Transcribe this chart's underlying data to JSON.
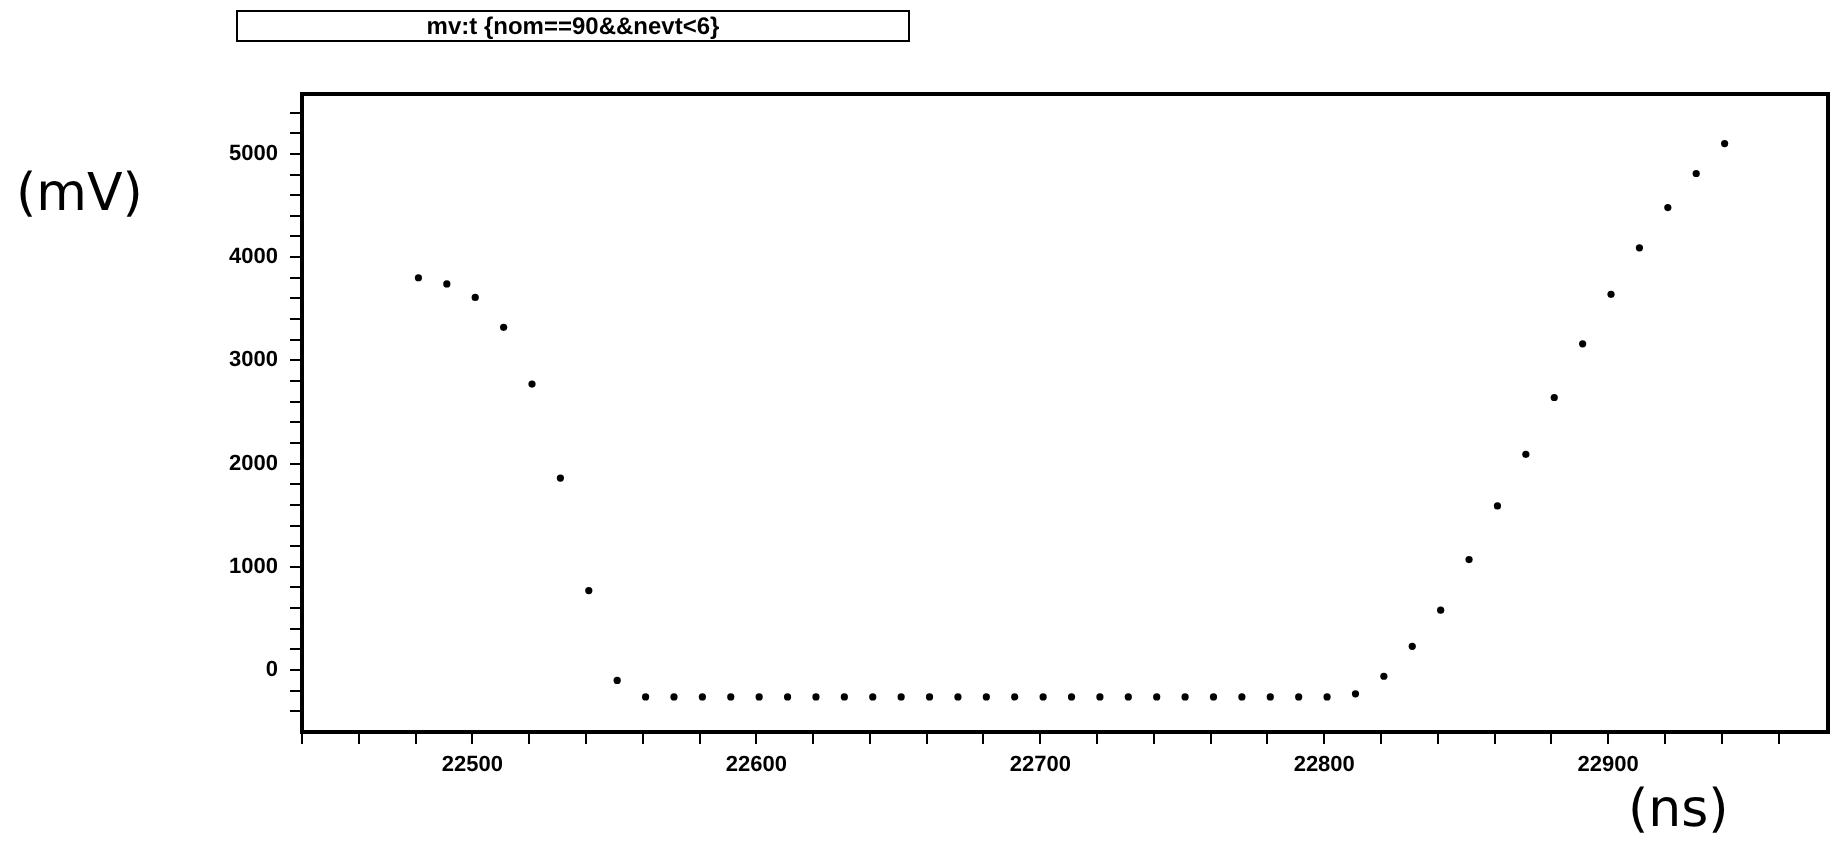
{
  "chart_data": {
    "type": "scatter",
    "title": "mv:t {nom==90&&nevt<6}",
    "xlabel": "(ns)",
    "ylabel": "(mV)",
    "x": [
      22481,
      22491,
      22501,
      22511,
      22521,
      22531,
      22541,
      22551,
      22561,
      22571,
      22581,
      22591,
      22601,
      22611,
      22621,
      22631,
      22641,
      22651,
      22661,
      22671,
      22681,
      22691,
      22701,
      22711,
      22721,
      22731,
      22741,
      22751,
      22761,
      22771,
      22781,
      22791,
      22801,
      22811,
      22821,
      22831,
      22841,
      22851,
      22861,
      22871,
      22881,
      22891,
      22901,
      22911,
      22921,
      22931,
      22941
    ],
    "values": [
      3800,
      3740,
      3610,
      3320,
      2770,
      1860,
      770,
      -100,
      -260,
      -260,
      -260,
      -260,
      -260,
      -260,
      -260,
      -260,
      -260,
      -260,
      -260,
      -260,
      -260,
      -260,
      -260,
      -260,
      -260,
      -260,
      -260,
      -260,
      -260,
      -260,
      -260,
      -260,
      -260,
      -230,
      -60,
      230,
      580,
      1070,
      1590,
      2090,
      2640,
      3160,
      3640,
      4090,
      4480,
      4810,
      5100
    ],
    "color": "#000000",
    "marker": "circle",
    "grid": false,
    "legend": false,
    "xlim": [
      22440,
      22976
    ],
    "ylim": [
      -600,
      5580
    ],
    "xticks": [
      {
        "value": 22440,
        "label": null
      },
      {
        "value": 22460,
        "label": null
      },
      {
        "value": 22480,
        "label": null
      },
      22500,
      {
        "value": 22520,
        "label": null
      },
      {
        "value": 22540,
        "label": null
      },
      {
        "value": 22560,
        "label": null
      },
      {
        "value": 22580,
        "label": null
      },
      22600,
      {
        "value": 22620,
        "label": null
      },
      {
        "value": 22640,
        "label": null
      },
      {
        "value": 22660,
        "label": null
      },
      {
        "value": 22680,
        "label": null
      },
      22700,
      {
        "value": 22720,
        "label": null
      },
      {
        "value": 22740,
        "label": null
      },
      {
        "value": 22760,
        "label": null
      },
      {
        "value": 22780,
        "label": null
      },
      22800,
      {
        "value": 22820,
        "label": null
      },
      {
        "value": 22840,
        "label": null
      },
      {
        "value": 22860,
        "label": null
      },
      {
        "value": 22880,
        "label": null
      },
      22900,
      {
        "value": 22920,
        "label": null
      },
      {
        "value": 22940,
        "label": null
      },
      {
        "value": 22960,
        "label": null
      }
    ],
    "yticks": [
      {
        "value": -400,
        "label": null
      },
      {
        "value": -200,
        "label": null
      },
      0,
      {
        "value": 200,
        "label": null
      },
      {
        "value": 400,
        "label": null
      },
      {
        "value": 600,
        "label": null
      },
      {
        "value": 800,
        "label": null
      },
      1000,
      {
        "value": 1200,
        "label": null
      },
      {
        "value": 1400,
        "label": null
      },
      {
        "value": 1600,
        "label": null
      },
      {
        "value": 1800,
        "label": null
      },
      2000,
      {
        "value": 2200,
        "label": null
      },
      {
        "value": 2400,
        "label": null
      },
      {
        "value": 2600,
        "label": null
      },
      {
        "value": 2800,
        "label": null
      },
      3000,
      {
        "value": 3200,
        "label": null
      },
      {
        "value": 3400,
        "label": null
      },
      {
        "value": 3600,
        "label": null
      },
      {
        "value": 3800,
        "label": null
      },
      4000,
      {
        "value": 4200,
        "label": null
      },
      {
        "value": 4400,
        "label": null
      },
      {
        "value": 4600,
        "label": null
      },
      {
        "value": 4800,
        "label": null
      },
      5000,
      {
        "value": 5200,
        "label": null
      },
      {
        "value": 5400,
        "label": null
      }
    ]
  }
}
